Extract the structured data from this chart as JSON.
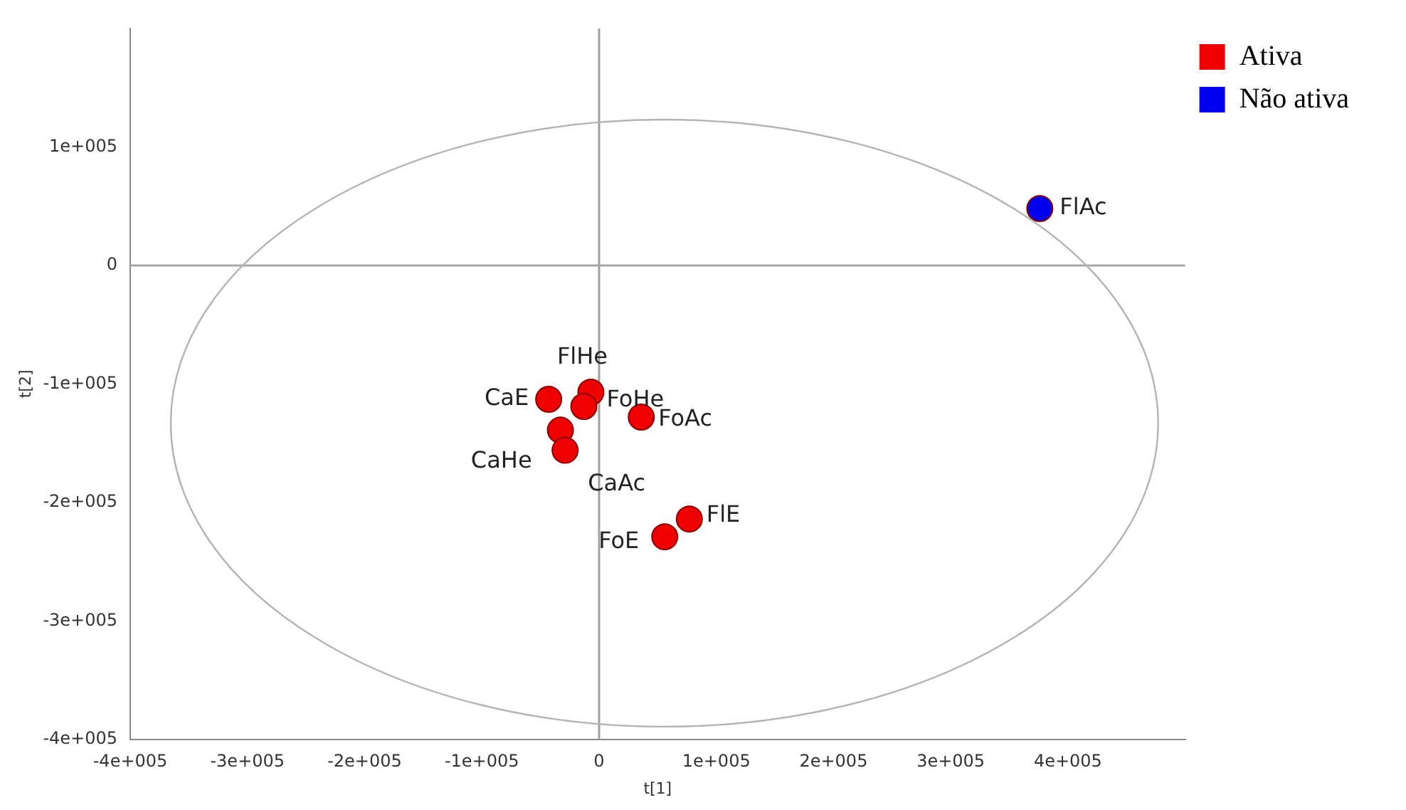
{
  "chart_data": {
    "type": "scatter",
    "xlabel": "t[1]",
    "ylabel": "t[2]",
    "xlim": [
      -400000,
      500000
    ],
    "xticks": [
      {
        "value": -400000,
        "label": "-4e+005"
      },
      {
        "value": -300000,
        "label": "-3e+005"
      },
      {
        "value": -200000,
        "label": "-2e+005"
      },
      {
        "value": -100000,
        "label": "-1e+005"
      },
      0,
      {
        "value": 100000,
        "label": "1e+005"
      },
      {
        "value": 200000,
        "label": "2e+005"
      },
      {
        "value": 300000,
        "label": "3e+005"
      },
      {
        "value": 400000,
        "label": "4e+005"
      }
    ],
    "ylim": [
      -400000,
      200000
    ],
    "yticks": [
      {
        "value": -400000,
        "label": "-4e+005"
      },
      {
        "value": -300000,
        "label": "-3e+005"
      },
      {
        "value": -200000,
        "label": "-2e+005"
      },
      {
        "value": -100000,
        "label": "-1e+005"
      },
      0,
      {
        "value": 100000,
        "label": "1e+005"
      }
    ],
    "grid": false,
    "legend": "top right",
    "marker": "circle",
    "ref_lines": [
      {
        "axis": "x",
        "value": 0,
        "color": "#a0a0a0"
      },
      {
        "axis": "y",
        "value": 0,
        "color": "#a8a8a8"
      }
    ],
    "series": [
      {
        "name": "Ativa",
        "color": "#ee0000",
        "x": [
          -43000,
          -7000,
          -13000,
          36000,
          -33000,
          -29000,
          77000,
          56000
        ],
        "values": [
          -113000,
          -107000,
          -119000,
          -128000,
          -139000,
          -156000,
          -214000,
          -229000
        ],
        "value_labels": [
          "CaE",
          "FlHe",
          "FoHe",
          "FoAc",
          "CaHe",
          "CaAc",
          "FlE",
          "FoE"
        ]
      },
      {
        "name": "Não ativa",
        "color": "#0000ee",
        "x": [
          376000
        ],
        "values": [
          48000
        ],
        "value_labels": [
          "FlAc"
        ]
      }
    ]
  }
}
